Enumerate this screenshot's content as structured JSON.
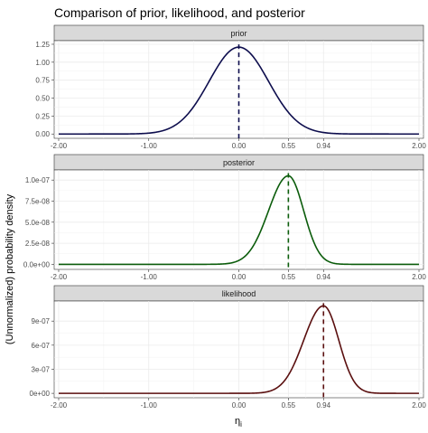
{
  "title": "Comparison of prior, likelihood, and posterior",
  "ylabel": "(Unnormalized) probability density",
  "xlabel": "η",
  "xlabel_sub": "i",
  "colors": {
    "prior": "#0d0d4d",
    "posterior": "#0b5c0b",
    "likelihood": "#5a0f0f",
    "strip": "#d9d9d9",
    "grid": "#ebebeb"
  },
  "chart_data": [
    {
      "type": "line",
      "title": "prior",
      "x_ticks": [
        -2.0,
        -1.0,
        0.0,
        0.55,
        0.94,
        2.0
      ],
      "x_tick_labels": [
        "-2.00",
        "-1.00",
        "0.00",
        "0.55",
        "0.94",
        "2.00"
      ],
      "xlim": [
        -2.05,
        2.05
      ],
      "ylim": [
        -0.06,
        1.3
      ],
      "y_ticks": [
        0.0,
        0.25,
        0.5,
        0.75,
        1.0,
        1.25
      ],
      "y_tick_labels": [
        "0.00",
        "0.25",
        "0.50",
        "0.75",
        "1.00",
        "1.25"
      ],
      "curve": {
        "shape": "normal",
        "mean": 0.0,
        "sd": 0.33,
        "peak": 1.21
      },
      "vline": 0.0,
      "series": [
        {
          "name": "prior"
        }
      ]
    },
    {
      "type": "line",
      "title": "posterior",
      "x_ticks": [
        -2.0,
        -1.0,
        0.0,
        0.55,
        0.94,
        2.0
      ],
      "x_tick_labels": [
        "-2.00",
        "-1.00",
        "0.00",
        "0.55",
        "0.94",
        "2.00"
      ],
      "xlim": [
        -2.05,
        2.05
      ],
      "ylim": [
        -6e-09,
        1.12e-07
      ],
      "y_ticks": [
        0,
        2.5e-08,
        5e-08,
        7.5e-08,
        1e-07
      ],
      "y_tick_labels": [
        "0.0e+00",
        "2.5e-08",
        "5.0e-08",
        "7.5e-08",
        "1.0e-07"
      ],
      "curve": {
        "shape": "skewed",
        "mean": 0.55,
        "sd_left": 0.22,
        "sd_right": 0.17,
        "peak": 1.05e-07
      },
      "vline": 0.55,
      "series": [
        {
          "name": "posterior"
        }
      ]
    },
    {
      "type": "line",
      "title": "likelihood",
      "x_ticks": [
        -2.0,
        -1.0,
        0.0,
        0.55,
        0.94,
        2.0
      ],
      "x_tick_labels": [
        "-2.00",
        "-1.00",
        "0.00",
        "0.55",
        "0.94",
        "2.00"
      ],
      "xlim": [
        -2.05,
        2.05
      ],
      "ylim": [
        -5.5e-08,
        1.15e-06
      ],
      "y_ticks": [
        0,
        3e-07,
        6e-07,
        9e-07
      ],
      "y_tick_labels": [
        "0e+00",
        "3e-07",
        "6e-07",
        "9e-07"
      ],
      "curve": {
        "shape": "skewed",
        "mean": 0.94,
        "sd_left": 0.22,
        "sd_right": 0.17,
        "peak": 1.09e-06
      },
      "vline": 0.94,
      "series": [
        {
          "name": "likelihood"
        }
      ]
    }
  ]
}
